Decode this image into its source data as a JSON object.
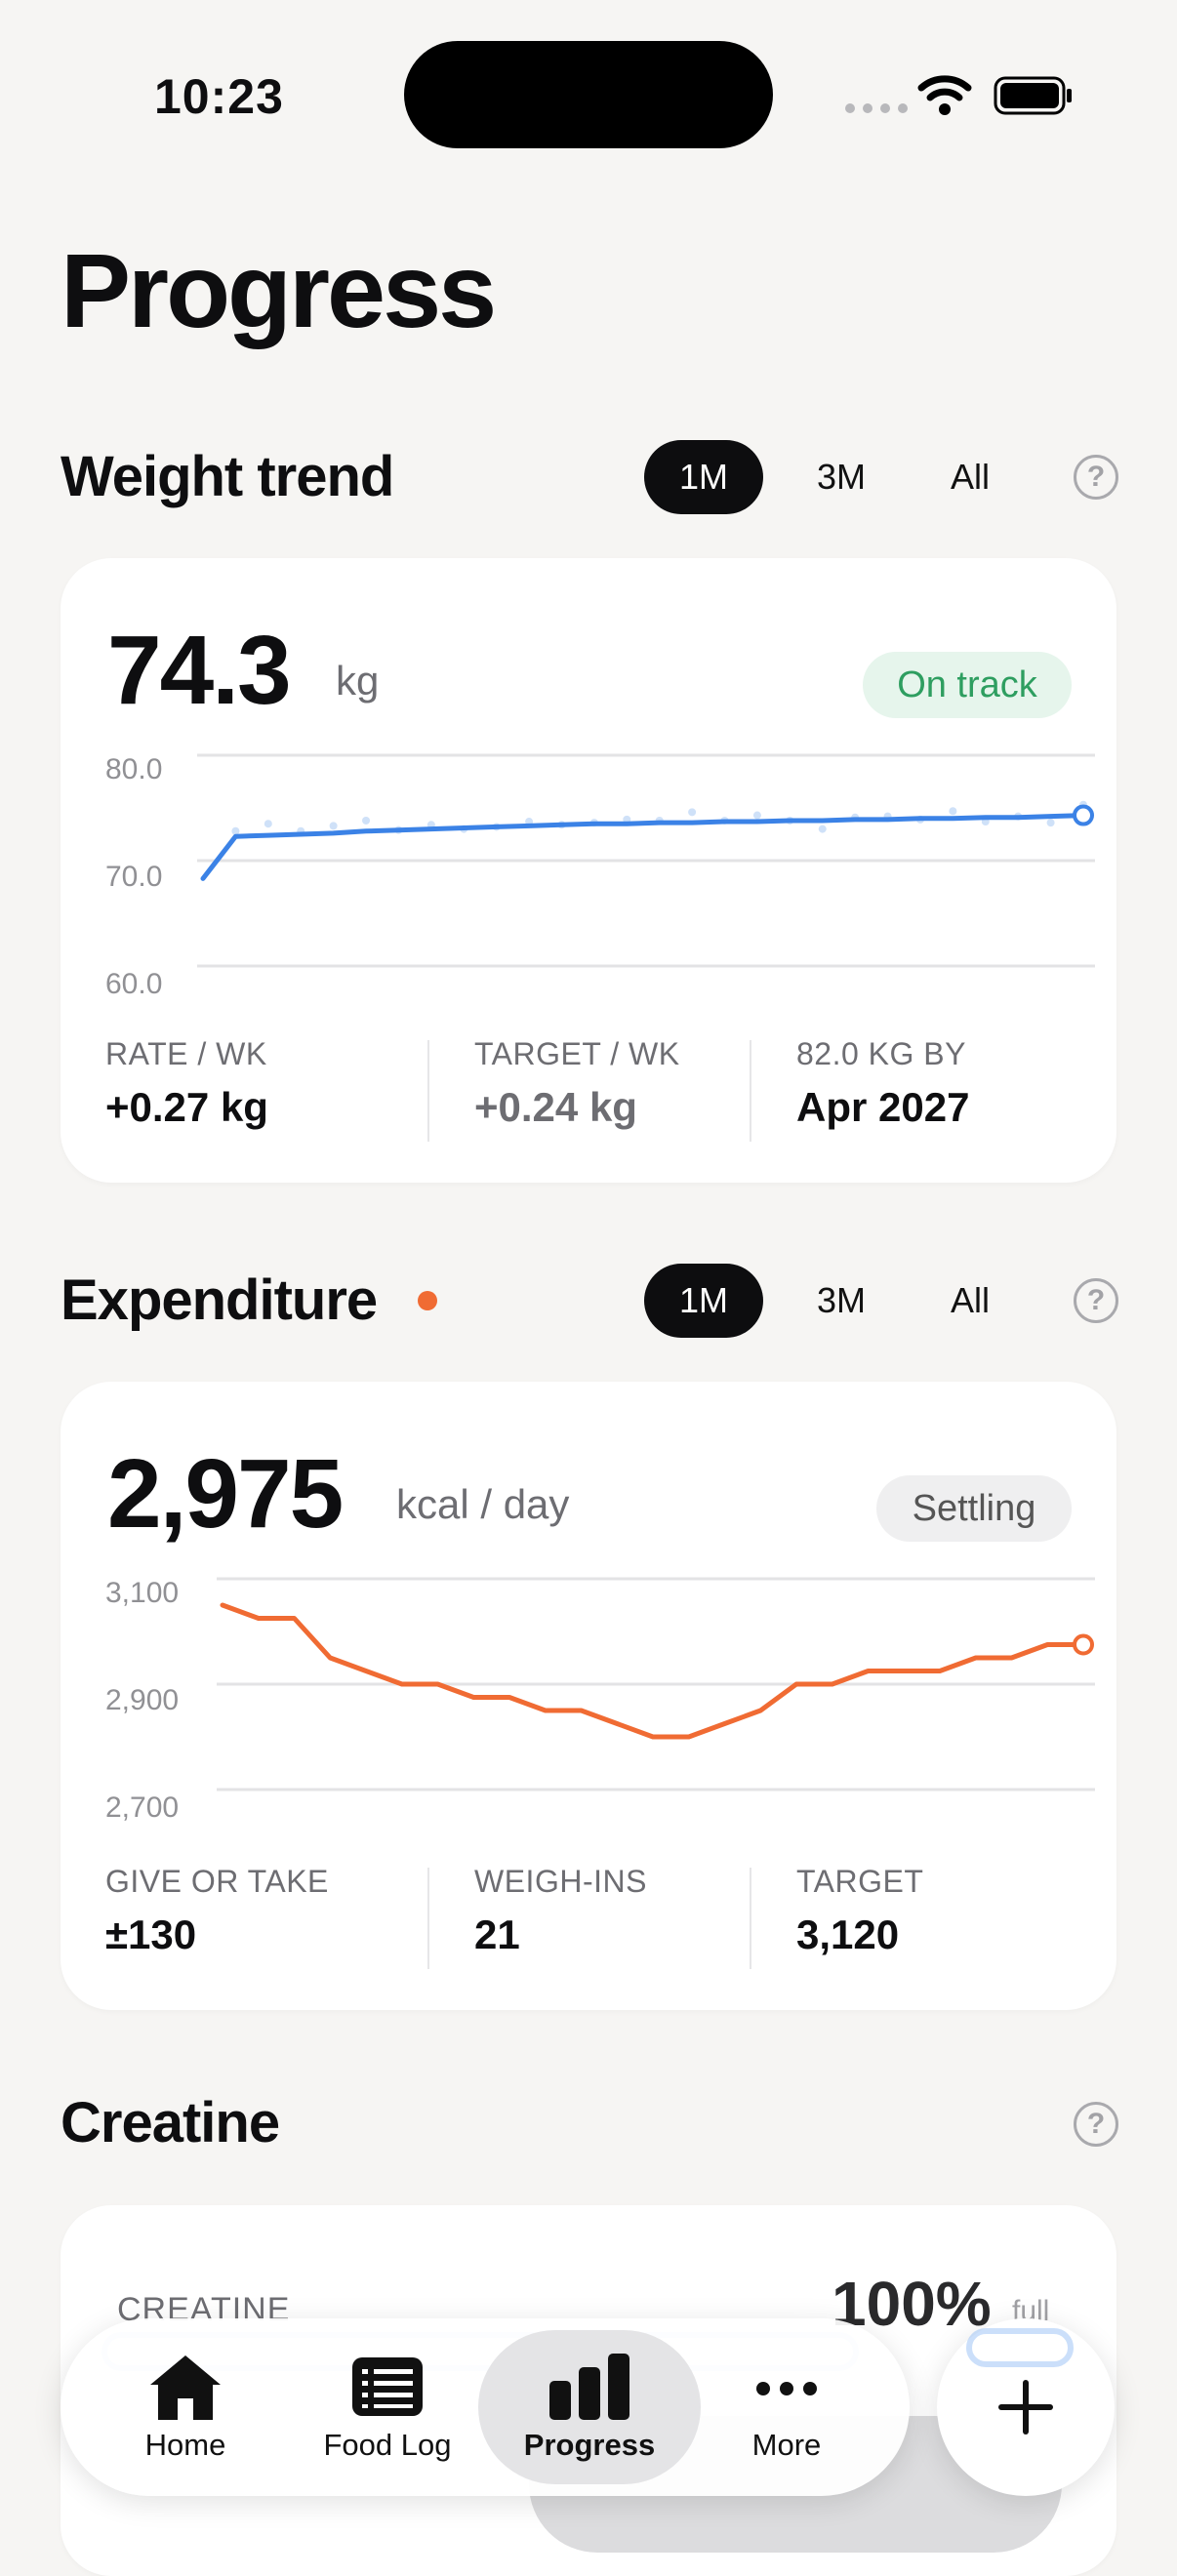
{
  "status_bar": {
    "time": "10:23"
  },
  "page_title": "Progress",
  "weight": {
    "title": "Weight trend",
    "ranges": [
      "1M",
      "3M",
      "All"
    ],
    "help": "?",
    "value": "74.3",
    "unit": "kg",
    "badge": "On track",
    "y_ticks": [
      "80.0",
      "70.0",
      "60.0"
    ],
    "stats": [
      {
        "label": "RATE / WK",
        "value": "+0.27 kg"
      },
      {
        "label": "TARGET / WK",
        "value": "+0.24 kg"
      },
      {
        "label": "82.0 KG BY",
        "value": "Apr 2027"
      }
    ]
  },
  "expenditure": {
    "title": "Expenditure",
    "ranges": [
      "1M",
      "3M",
      "All"
    ],
    "help": "?",
    "value": "2,975",
    "unit": "kcal / day",
    "badge": "Settling",
    "y_ticks": [
      "3,100",
      "2,900",
      "2,700"
    ],
    "stats": [
      {
        "label": "GIVE OR TAKE",
        "value": "±130"
      },
      {
        "label": "WEIGH-INS",
        "value": "21"
      },
      {
        "label": "TARGET",
        "value": "3,120"
      }
    ]
  },
  "creatine": {
    "title": "Creatine",
    "help": "?",
    "label": "CREATINE",
    "percent": "100%",
    "percent_suffix": "full"
  },
  "colors": {
    "blue": "#3b82e6",
    "orange": "#f06b33",
    "green": "#2e9e60"
  },
  "chart_data": [
    {
      "type": "line",
      "title": "",
      "ylim": [
        60,
        80
      ],
      "y_ticks": [
        80,
        70,
        60
      ],
      "series": [
        {
          "values": [
            68.3,
            72.3,
            72.4,
            72.5,
            72.6,
            72.8,
            72.9,
            73.0,
            73.1,
            73.2,
            73.3,
            73.4,
            73.5,
            73.5,
            73.6,
            73.6,
            73.7,
            73.7,
            73.8,
            73.8,
            73.9,
            73.9,
            74.0,
            74.0,
            74.1,
            74.1,
            74.2,
            74.3
          ]
        },
        {
          "values": [
            null,
            72.8,
            73.5,
            72.8,
            73.3,
            73.8,
            72.9,
            73.4,
            73.0,
            73.2,
            73.7,
            73.4,
            73.6,
            73.9,
            73.8,
            74.6,
            73.8,
            74.3,
            73.8,
            73.0,
            74.1,
            74.2,
            73.9,
            74.7,
            73.7,
            74.2,
            73.6,
            75.3
          ]
        }
      ]
    },
    {
      "type": "line",
      "title": "",
      "ylim": [
        2700,
        3100
      ],
      "y_ticks": [
        3100,
        2900,
        2700
      ],
      "series": [
        {
          "values": [
            3050,
            3025,
            3025,
            2950,
            2925,
            2900,
            2900,
            2875,
            2875,
            2850,
            2850,
            2825,
            2800,
            2800,
            2825,
            2850,
            2900,
            2900,
            2925,
            2925,
            2925,
            2950,
            2950,
            2975,
            2975
          ]
        }
      ]
    }
  ]
}
